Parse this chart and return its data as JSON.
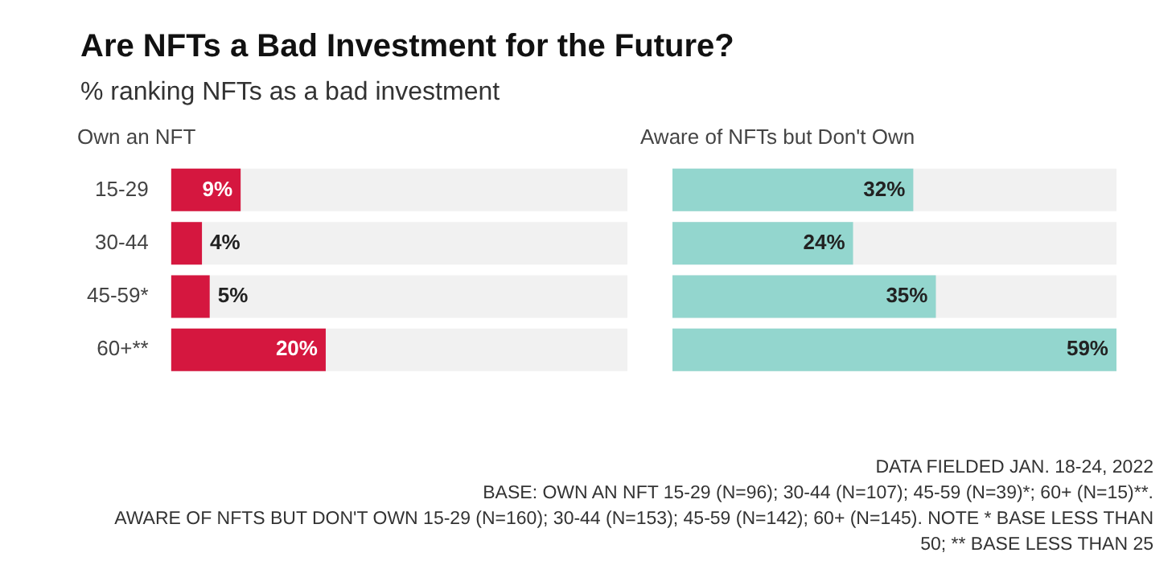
{
  "chart_data": [
    {
      "type": "other",
      "title": "Are NFTs a Bad Investment for the Future?",
      "subtitle": "% ranking NFTs as a bad investment",
      "annotations": [
        "DATA FIELDED JAN. 18-24, 2022",
        "BASE: OWN AN NFT 15-29 (N=96); 30-44 (N=107); 45-59 (N=39)*; 60+ (N=15)**.",
        "AWARE OF NFTS BUT DON'T OWN 15-29 (N=160); 30-44 (N=153); 45-59 (N=142); 60+ (N=145). NOTE * BASE LESS THAN 50; ** BASE LESS THAN 25"
      ]
    },
    {
      "type": "bar",
      "orientation": "horizontal",
      "title": "Own an NFT",
      "categories": [
        "15-29",
        "30-44",
        "45-59*",
        "60+**"
      ],
      "values": [
        9,
        4,
        5,
        20
      ],
      "color": "#d5173f",
      "value_labels": [
        "9%",
        "4%",
        "5%",
        "20%"
      ]
    },
    {
      "type": "bar",
      "orientation": "horizontal",
      "title": "Aware of NFTs but Don't Own",
      "categories": [
        null,
        null,
        null,
        null
      ],
      "values": [
        32,
        24,
        35,
        59
      ],
      "color": "#93d6ce",
      "value_labels": [
        "32%",
        "24%",
        "35%",
        "59%"
      ]
    }
  ]
}
